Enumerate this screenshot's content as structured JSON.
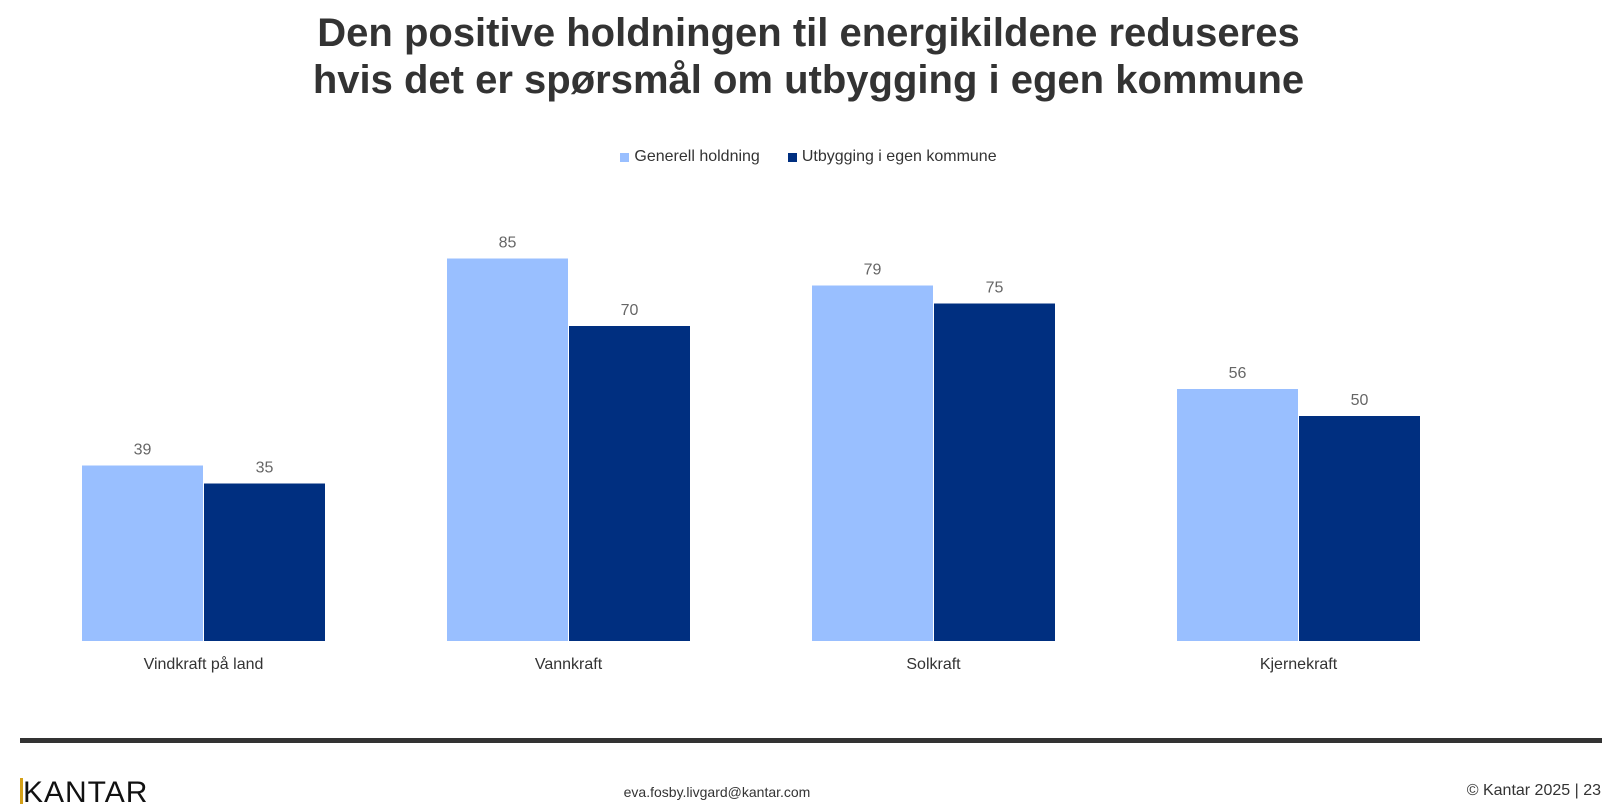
{
  "chart_data": {
    "type": "bar",
    "title": "Den positive holdningen til energikildene reduseres hvis det er spørsmål om utbygging i egen kommune",
    "title_lines": [
      "Den positive holdningen til energikildene reduseres",
      "hvis det er spørsmål om utbygging i egen kommune"
    ],
    "categories": [
      "Vindkraft på land",
      "Vannkraft",
      "Solkraft",
      "Kjernekraft"
    ],
    "series": [
      {
        "name": "Generell holdning",
        "color": "#99BFFF",
        "values": [
          39,
          85,
          79,
          56
        ]
      },
      {
        "name": "Utbygging i egen kommune",
        "color": "#002F80",
        "values": [
          35,
          70,
          75,
          50
        ]
      }
    ],
    "xlabel": "",
    "ylabel": "",
    "ylim": [
      0,
      100
    ],
    "grid": false,
    "legend_position": "top-center",
    "data_labels": true
  },
  "footer": {
    "logo": "KANTAR",
    "email": "eva.fosby.livgard@kantar.com",
    "copyright": "© Kantar 2025 | 23"
  }
}
